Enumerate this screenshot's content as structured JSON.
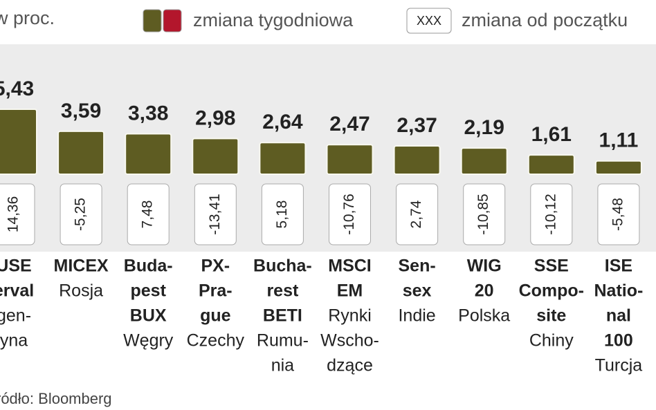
{
  "chart_data": {
    "type": "bar",
    "subtitle": "w proc.",
    "source": "ródło: Bloomberg",
    "categories": [
      {
        "name": [
          "USE",
          "erval"
        ],
        "country": [
          "gen-",
          "yna"
        ]
      },
      {
        "name": [
          "MICEX"
        ],
        "country": [
          "Rosja"
        ]
      },
      {
        "name": [
          "Buda-",
          "pest",
          "BUX"
        ],
        "country": [
          "Węgry"
        ]
      },
      {
        "name": [
          "PX-",
          "Pra-",
          "gue"
        ],
        "country": [
          "Czechy"
        ]
      },
      {
        "name": [
          "Bucha-",
          "rest",
          "BETI"
        ],
        "country": [
          "Rumu-",
          "nia"
        ]
      },
      {
        "name": [
          "MSCI",
          "EM"
        ],
        "country": [
          "Rynki",
          "Wscho-",
          "dzące"
        ]
      },
      {
        "name": [
          "Sen-",
          "sex"
        ],
        "country": [
          "Indie"
        ]
      },
      {
        "name": [
          "WIG",
          "20"
        ],
        "country": [
          "Polska"
        ]
      },
      {
        "name": [
          "SSE",
          "Compo-",
          "site"
        ],
        "country": [
          "Chiny"
        ]
      },
      {
        "name": [
          "ISE",
          "Natio-",
          "nal",
          "100"
        ],
        "country": [
          "Turcja"
        ]
      }
    ],
    "series": [
      {
        "name": "zmiana tygodniowa",
        "colors": [
          "#5e5c22",
          "#b3162c"
        ],
        "values": [
          5.43,
          3.59,
          3.38,
          2.98,
          2.64,
          2.47,
          2.37,
          2.19,
          1.61,
          1.11
        ],
        "value_labels": [
          "5,43",
          "3,59",
          "3,38",
          "2,98",
          "2,64",
          "2,47",
          "2,37",
          "2,19",
          "1,61",
          "1,11"
        ]
      },
      {
        "name": "zmiana od początku",
        "sample": "XXX",
        "values": [
          14.36,
          -5.25,
          7.48,
          -13.41,
          5.18,
          -10.76,
          2.74,
          -10.85,
          -10.12,
          -5.48
        ],
        "value_labels": [
          "14,36",
          "-5,25",
          "7,48",
          "-13,41",
          "5,18",
          "-10,76",
          "2,74",
          "-10,85",
          "-10,12",
          "-5,48"
        ]
      }
    ]
  }
}
